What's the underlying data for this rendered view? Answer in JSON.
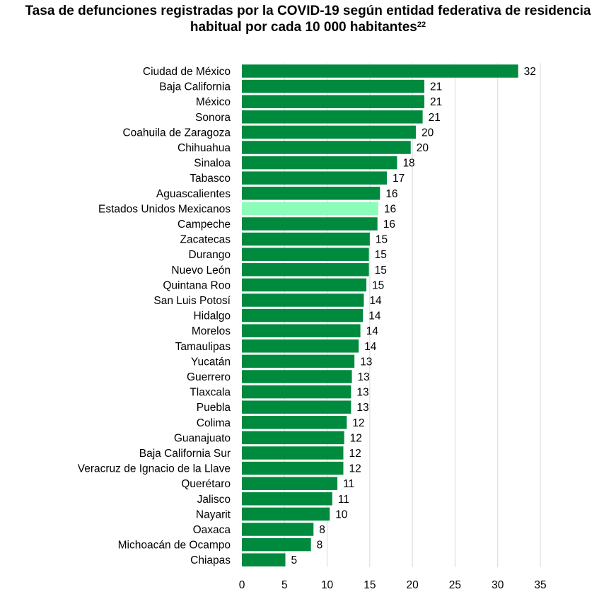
{
  "chart_data": {
    "type": "bar",
    "orientation": "horizontal",
    "title": "Tasa de defunciones registradas por la COVID-19 según entidad federativa de residencia habitual por cada 10 000 habitantes",
    "title_line1": "Tasa de defunciones registradas por la COVID-19 según entidad federativa de residencia",
    "title_line2": "habitual por cada 10 000 habitantes",
    "title_footnote": "22",
    "xlabel": "",
    "ylabel": "",
    "xlim": [
      0,
      35
    ],
    "xticks": [
      "0",
      "5",
      "10",
      "15",
      "20",
      "25",
      "30",
      "35"
    ],
    "grid": "vertical",
    "legend": "none",
    "bar_color": "#008a3e",
    "highlight_color": "#8dfcb9",
    "highlight_category": "Estados Unidos Mexicanos",
    "categories": [
      "Ciudad de México",
      "Baja California",
      "México",
      "Sonora",
      "Coahuila de Zaragoza",
      "Chihuahua",
      "Sinaloa",
      "Tabasco",
      "Aguascalientes",
      "Estados Unidos Mexicanos",
      "Campeche",
      "Zacatecas",
      "Durango",
      "Nuevo León",
      "Quintana Roo",
      "San Luis Potosí",
      "Hidalgo",
      "Morelos",
      "Tamaulipas",
      "Yucatán",
      "Guerrero",
      "Tlaxcala",
      "Puebla",
      "Colima",
      "Guanajuato",
      "Baja California Sur",
      "Veracruz de Ignacio de la Llave",
      "Querétaro",
      "Jalisco",
      "Nayarit",
      "Oaxaca",
      "Michoacán de Ocampo",
      "Chiapas"
    ],
    "values": [
      32.4,
      21.4,
      21.4,
      21.2,
      20.4,
      19.8,
      18.2,
      17.0,
      16.2,
      16.0,
      15.9,
      15.0,
      14.9,
      14.9,
      14.6,
      14.3,
      14.2,
      13.9,
      13.7,
      13.2,
      12.9,
      12.8,
      12.8,
      12.3,
      12.0,
      11.9,
      11.9,
      11.2,
      10.6,
      10.3,
      8.4,
      8.1,
      5.1
    ],
    "labels": [
      "32",
      "21",
      "21",
      "21",
      "20",
      "20",
      "18",
      "17",
      "16",
      "16",
      "16",
      "15",
      "15",
      "15",
      "15",
      "14",
      "14",
      "14",
      "14",
      "13",
      "13",
      "13",
      "13",
      "12",
      "12",
      "12",
      "12",
      "11",
      "11",
      "10",
      "8",
      "8",
      "5"
    ]
  }
}
